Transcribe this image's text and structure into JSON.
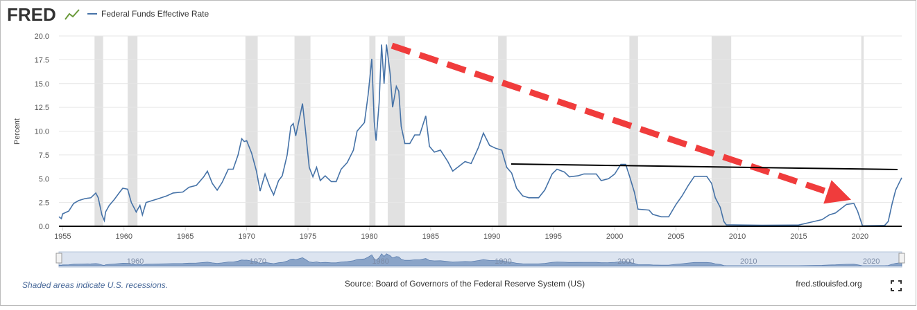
{
  "chart_data": {
    "type": "line",
    "brand": "FRED",
    "y_label": "Percent",
    "note": "Shaded areas indicate U.S. recessions.",
    "source": "Source: Board of Governors of the Federal Reserve System (US)",
    "site": "fred.stlouisfed.org",
    "xlim": [
      1954.7,
      2023.4
    ],
    "ylim": [
      0,
      20
    ],
    "xticks": [
      1955,
      1960,
      1965,
      1970,
      1975,
      1980,
      1985,
      1990,
      1995,
      2000,
      2005,
      2010,
      2015,
      2020
    ],
    "yticks": [
      {
        "value": 0,
        "label": "0.0"
      },
      {
        "value": 2.5,
        "label": "2.5"
      },
      {
        "value": 5,
        "label": "5.0"
      },
      {
        "value": 7.5,
        "label": "7.5"
      },
      {
        "value": 10,
        "label": "10.0"
      },
      {
        "value": 12.5,
        "label": "12.5"
      },
      {
        "value": 15,
        "label": "15.0"
      },
      {
        "value": 17.5,
        "label": "17.5"
      },
      {
        "value": 20,
        "label": "20.0"
      }
    ],
    "grid": true,
    "recessions": [
      [
        1957.6,
        1958.3
      ],
      [
        1960.3,
        1961.1
      ],
      [
        1969.9,
        1970.9
      ],
      [
        1973.9,
        1975.2
      ],
      [
        1980.0,
        1980.5
      ],
      [
        1981.5,
        1982.9
      ],
      [
        1990.5,
        1991.2
      ],
      [
        2001.2,
        2001.9
      ],
      [
        2007.9,
        2009.5
      ],
      [
        2020.1,
        2020.3
      ]
    ],
    "x": [
      1954.7,
      1954.9,
      1955.0,
      1955.5,
      1955.9,
      1956.3,
      1956.8,
      1957.3,
      1957.7,
      1957.9,
      1958.2,
      1958.4,
      1958.5,
      1958.8,
      1959.2,
      1959.6,
      1959.9,
      1960.3,
      1960.6,
      1960.8,
      1961.0,
      1961.3,
      1961.5,
      1961.8,
      1962.3,
      1962.8,
      1963.5,
      1964.0,
      1964.8,
      1965.3,
      1965.9,
      1966.5,
      1966.8,
      1967.2,
      1967.6,
      1968.0,
      1968.5,
      1968.9,
      1969.3,
      1969.6,
      1969.8,
      1970.0,
      1970.4,
      1970.8,
      1971.1,
      1971.5,
      1971.9,
      1972.2,
      1972.6,
      1972.9,
      1973.3,
      1973.6,
      1973.8,
      1974.0,
      1974.3,
      1974.55,
      1974.8,
      1975.1,
      1975.4,
      1975.7,
      1976.0,
      1976.4,
      1976.9,
      1977.3,
      1977.7,
      1978.2,
      1978.7,
      1979.0,
      1979.6,
      1979.9,
      1980.2,
      1980.4,
      1980.55,
      1980.8,
      1981.0,
      1981.2,
      1981.4,
      1981.7,
      1981.9,
      1982.2,
      1982.4,
      1982.6,
      1982.9,
      1983.3,
      1983.7,
      1984.1,
      1984.6,
      1984.9,
      1985.3,
      1985.8,
      1986.4,
      1986.8,
      1987.2,
      1987.8,
      1988.3,
      1988.9,
      1989.3,
      1989.8,
      1990.3,
      1990.8,
      1991.2,
      1991.6,
      1992.0,
      1992.5,
      1993.0,
      1993.8,
      1994.3,
      1994.9,
      1995.3,
      1995.9,
      1996.3,
      1997.0,
      1997.5,
      1998.5,
      1998.9,
      1999.5,
      2000.0,
      2000.5,
      2000.9,
      2001.2,
      2001.6,
      2001.9,
      2002.8,
      2003.1,
      2003.8,
      2004.4,
      2005.0,
      2005.5,
      2006.0,
      2006.5,
      2007.5,
      2007.9,
      2008.2,
      2008.6,
      2008.9,
      2009.1,
      2012.0,
      2015.0,
      2015.9,
      2016.9,
      2017.5,
      2018.0,
      2018.9,
      2019.5,
      2019.8,
      2020.2,
      2022.0,
      2022.3,
      2022.6,
      2022.9,
      2023.2,
      2023.4
    ],
    "series": [
      {
        "name": "Federal Funds Effective Rate",
        "color": "#4572a7",
        "values": [
          1.0,
          0.8,
          1.3,
          1.6,
          2.4,
          2.7,
          2.9,
          3.0,
          3.5,
          3.0,
          1.2,
          0.6,
          1.5,
          2.2,
          2.8,
          3.5,
          4.0,
          3.9,
          2.5,
          2.0,
          1.5,
          2.2,
          1.2,
          2.5,
          2.7,
          2.9,
          3.2,
          3.5,
          3.6,
          4.1,
          4.3,
          5.2,
          5.8,
          4.5,
          3.8,
          4.6,
          6.0,
          6.0,
          7.5,
          9.2,
          8.9,
          9.0,
          7.7,
          5.8,
          3.7,
          5.5,
          4.1,
          3.3,
          4.8,
          5.3,
          7.5,
          10.5,
          10.8,
          9.5,
          11.3,
          12.9,
          10.0,
          6.2,
          5.2,
          6.2,
          4.8,
          5.3,
          4.7,
          4.7,
          6.0,
          6.7,
          8.0,
          10.0,
          10.9,
          13.8,
          17.6,
          11.0,
          9.0,
          13.0,
          19.1,
          15.0,
          19.1,
          16.0,
          12.5,
          14.7,
          14.2,
          10.5,
          8.7,
          8.7,
          9.6,
          9.6,
          11.6,
          8.4,
          7.8,
          8.0,
          6.8,
          5.8,
          6.2,
          6.8,
          6.6,
          8.3,
          9.8,
          8.5,
          8.2,
          8.0,
          6.2,
          5.6,
          4.0,
          3.2,
          3.0,
          3.0,
          3.8,
          5.5,
          6.0,
          5.7,
          5.2,
          5.3,
          5.5,
          5.5,
          4.8,
          5.0,
          5.5,
          6.5,
          6.5,
          5.3,
          3.6,
          1.8,
          1.7,
          1.25,
          1.0,
          1.0,
          2.3,
          3.2,
          4.3,
          5.25,
          5.25,
          4.5,
          3.0,
          2.0,
          0.5,
          0.15,
          0.1,
          0.13,
          0.4,
          0.7,
          1.2,
          1.4,
          2.3,
          2.4,
          1.6,
          0.05,
          0.08,
          0.5,
          2.3,
          3.8,
          4.6,
          5.1
        ]
      }
    ]
  }
}
